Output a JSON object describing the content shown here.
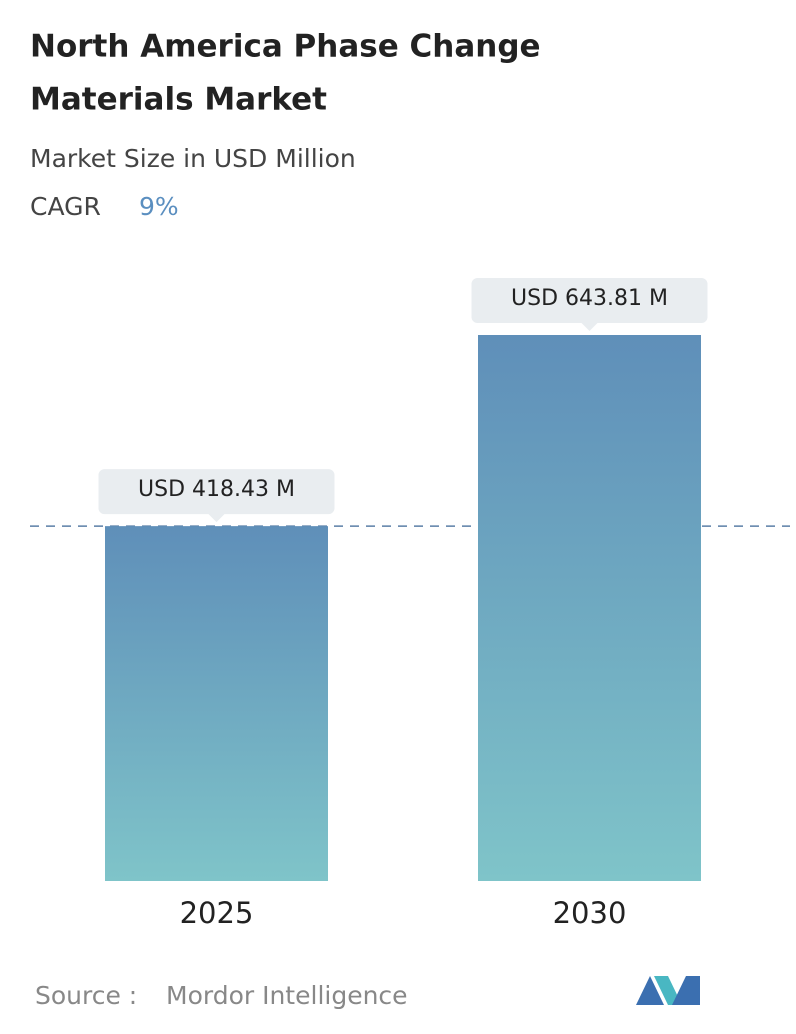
{
  "chart_data": {
    "type": "bar",
    "title": [
      "North America Phase Change",
      "Materials Market"
    ],
    "subtitle": "Market Size in USD Million",
    "cagr": {
      "label": "CAGR",
      "value_label": "9%"
    },
    "categories": [
      "2025",
      "2030"
    ],
    "values": [
      418.43,
      643.81
    ],
    "value_labels": [
      "USD 418.43 M",
      "USD 643.81 M"
    ],
    "source": {
      "label": "Source :",
      "name": "Mordor Intelligence"
    }
  }
}
